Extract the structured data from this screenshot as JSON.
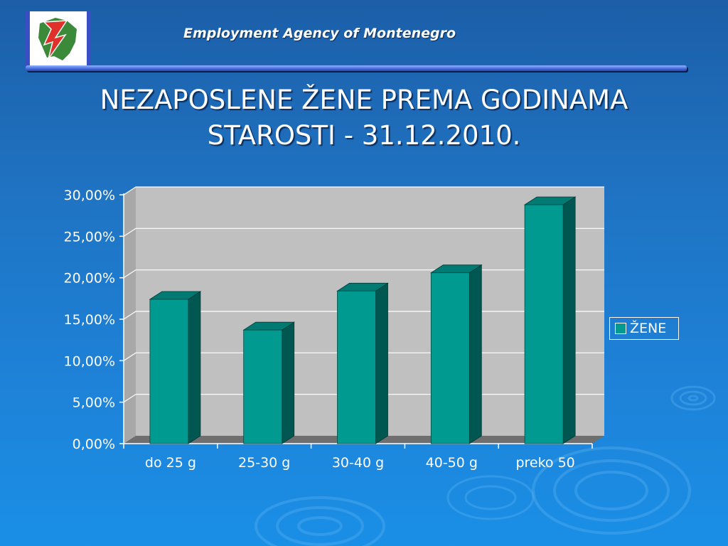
{
  "header": {
    "agency": "Employment Agency of Montenegro"
  },
  "slide": {
    "title_line1": "NEZAPOSLENE ŽENE PREMA GODINAMA",
    "title_line2": "STAROSTI - 31.12.2010."
  },
  "colors": {
    "bar_front": "#009a90",
    "bar_side": "#005650",
    "bar_top": "#007a72",
    "plot_bg": "#c0c0c0",
    "floor": "#6f6f6f"
  },
  "chart_data": {
    "type": "bar",
    "style": "3d-column",
    "categories": [
      "do 25 g",
      "25-30 g",
      "30-40 g",
      "40-50 g",
      "preko 50"
    ],
    "series": [
      {
        "name": "ŽENE",
        "values": [
          17.4,
          13.7,
          18.4,
          20.6,
          28.8
        ]
      }
    ],
    "ylim": [
      0,
      30
    ],
    "yticks": [
      "0,00%",
      "5,00%",
      "10,00%",
      "15,00%",
      "20,00%",
      "25,00%",
      "30,00%"
    ],
    "grid": true,
    "legend_position": "right"
  }
}
